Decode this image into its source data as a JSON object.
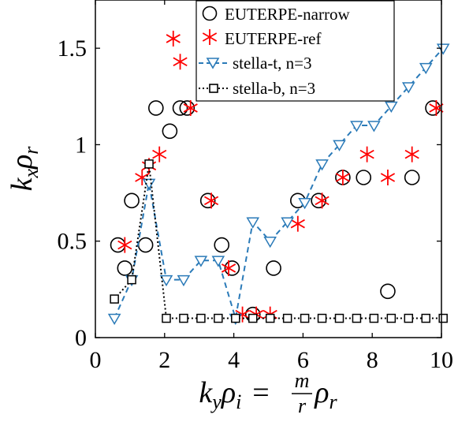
{
  "chart_data": {
    "type": "scatter",
    "xlim": [
      0,
      10
    ],
    "ylim": [
      0,
      1.75
    ],
    "x_ticks": [
      "0",
      "2",
      "4",
      "6",
      "8",
      "10"
    ],
    "y_ticks": [
      "0",
      "0.5",
      "1",
      "1.5"
    ],
    "x_tick_values": [
      0,
      2,
      4,
      6,
      8,
      10
    ],
    "y_tick_values": [
      0,
      0.5,
      1,
      1.5
    ],
    "grid": false,
    "legend_position": "top-right",
    "xlabel": {
      "main": "k",
      "sub1": "y",
      "rho": "ρ",
      "sub2": "i",
      "eq": "=",
      "num": "m",
      "den": "r",
      "rho2": "ρ",
      "sub3": "r"
    },
    "ylabel": {
      "main": "k",
      "sub1": "x",
      "rho": "ρ",
      "sub2": "r"
    },
    "series": [
      {
        "name": "EUTERPE-narrow",
        "marker": "circle",
        "color": "#000000",
        "line": "none",
        "points": [
          [
            0.65,
            0.48
          ],
          [
            0.85,
            0.36
          ],
          [
            1.05,
            0.71
          ],
          [
            1.45,
            0.48
          ],
          [
            1.75,
            1.19
          ],
          [
            2.15,
            1.07
          ],
          [
            2.45,
            1.19
          ],
          [
            2.65,
            1.19
          ],
          [
            3.25,
            0.71
          ],
          [
            3.65,
            0.48
          ],
          [
            3.95,
            0.36
          ],
          [
            4.55,
            0.12
          ],
          [
            5.15,
            0.36
          ],
          [
            5.85,
            0.71
          ],
          [
            6.45,
            0.71
          ],
          [
            7.15,
            0.83
          ],
          [
            7.75,
            0.83
          ],
          [
            8.45,
            0.24
          ],
          [
            9.15,
            0.83
          ],
          [
            9.75,
            1.19
          ]
        ]
      },
      {
        "name": "EUTERPE-ref",
        "marker": "asterisk",
        "color": "#ff0000",
        "line": "none",
        "points": [
          [
            0.85,
            0.48
          ],
          [
            1.35,
            0.83
          ],
          [
            1.55,
            0.89
          ],
          [
            1.85,
            0.95
          ],
          [
            2.25,
            1.55
          ],
          [
            2.45,
            1.43
          ],
          [
            2.75,
            1.19
          ],
          [
            3.35,
            0.71
          ],
          [
            3.85,
            0.36
          ],
          [
            4.25,
            0.12
          ],
          [
            4.65,
            0.12
          ],
          [
            5.05,
            0.12
          ],
          [
            5.85,
            0.59
          ],
          [
            6.55,
            0.71
          ],
          [
            7.15,
            0.83
          ],
          [
            7.85,
            0.95
          ],
          [
            8.45,
            0.83
          ],
          [
            9.15,
            0.95
          ],
          [
            9.85,
            1.19
          ]
        ]
      },
      {
        "name": "stella-t, n=3",
        "marker": "triangle-down",
        "color": "#2a7ab8",
        "line": "dashed",
        "points": [
          [
            0.55,
            0.1
          ],
          [
            1.05,
            0.3
          ],
          [
            1.55,
            0.8
          ],
          [
            2.05,
            0.3
          ],
          [
            2.55,
            0.3
          ],
          [
            3.05,
            0.4
          ],
          [
            3.55,
            0.4
          ],
          [
            4.05,
            0.1
          ],
          [
            4.55,
            0.6
          ],
          [
            5.05,
            0.5
          ],
          [
            5.55,
            0.6
          ],
          [
            6.05,
            0.7
          ],
          [
            6.55,
            0.9
          ],
          [
            7.05,
            1.0
          ],
          [
            7.55,
            1.1
          ],
          [
            8.05,
            1.1
          ],
          [
            8.55,
            1.2
          ],
          [
            9.05,
            1.3
          ],
          [
            9.55,
            1.4
          ],
          [
            10.05,
            1.5
          ]
        ]
      },
      {
        "name": "stella-b, n=3",
        "marker": "square",
        "color": "#000000",
        "line": "dotted",
        "points": [
          [
            0.55,
            0.2
          ],
          [
            1.05,
            0.3
          ],
          [
            1.55,
            0.9
          ],
          [
            2.05,
            0.1
          ],
          [
            2.55,
            0.1
          ],
          [
            3.05,
            0.1
          ],
          [
            3.55,
            0.1
          ],
          [
            4.05,
            0.1
          ],
          [
            4.55,
            0.1
          ],
          [
            5.05,
            0.1
          ],
          [
            5.55,
            0.1
          ],
          [
            6.05,
            0.1
          ],
          [
            6.55,
            0.1
          ],
          [
            7.05,
            0.1
          ],
          [
            7.55,
            0.1
          ],
          [
            8.05,
            0.1
          ],
          [
            8.55,
            0.1
          ],
          [
            9.05,
            0.1
          ],
          [
            9.55,
            0.1
          ],
          [
            10.05,
            0.1
          ]
        ]
      }
    ]
  }
}
